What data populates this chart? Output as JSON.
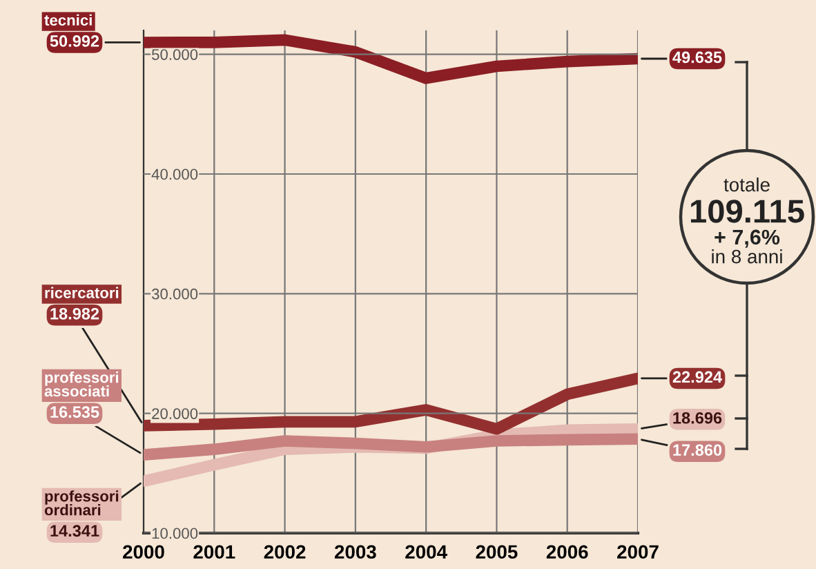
{
  "chart_data": {
    "type": "line",
    "x": [
      2000,
      2001,
      2002,
      2003,
      2004,
      2005,
      2006,
      2007
    ],
    "xlim": [
      2000,
      2007
    ],
    "xticks": [
      2000,
      2001,
      2002,
      2003,
      2004,
      2005,
      2006,
      2007
    ],
    "ylim": [
      10000,
      52000
    ],
    "yticks": [
      {
        "value": 10000,
        "label": "10.000"
      },
      {
        "value": 20000,
        "label": "20.000"
      },
      {
        "value": 30000,
        "label": "30.000"
      },
      {
        "value": 40000,
        "label": "40.000"
      },
      {
        "value": 50000,
        "label": "50.000"
      }
    ],
    "grid": true,
    "legend": false,
    "series": [
      {
        "name": "tecnici",
        "color": "#8b1e24",
        "values": [
          50992,
          51000,
          51200,
          50200,
          48000,
          49000,
          49400,
          49635
        ],
        "value_labels": [
          "50.992",
          null,
          null,
          null,
          null,
          null,
          null,
          "49.635"
        ]
      },
      {
        "name": "ricercatori",
        "color": "#93302f",
        "values": [
          18982,
          19100,
          19300,
          19300,
          20300,
          18700,
          21600,
          22924
        ],
        "value_labels": [
          "18.982",
          null,
          null,
          null,
          null,
          null,
          null,
          "22.924"
        ]
      },
      {
        "name": "professori associati",
        "color": "#c8817f",
        "values": [
          16535,
          17000,
          17700,
          17500,
          17200,
          17700,
          17800,
          17860
        ],
        "value_labels": [
          "16.535",
          null,
          null,
          null,
          null,
          null,
          null,
          "17.860"
        ]
      },
      {
        "name": "professori ordinari",
        "color": "#e4bab2",
        "values": [
          14341,
          15700,
          17000,
          17200,
          17100,
          18200,
          18600,
          18696
        ],
        "value_labels": [
          "14.341",
          null,
          null,
          null,
          null,
          null,
          null,
          "18.696"
        ]
      }
    ],
    "annotations": [
      "totale",
      "109.115",
      "+ 7,6%",
      "in 8 anni"
    ]
  }
}
